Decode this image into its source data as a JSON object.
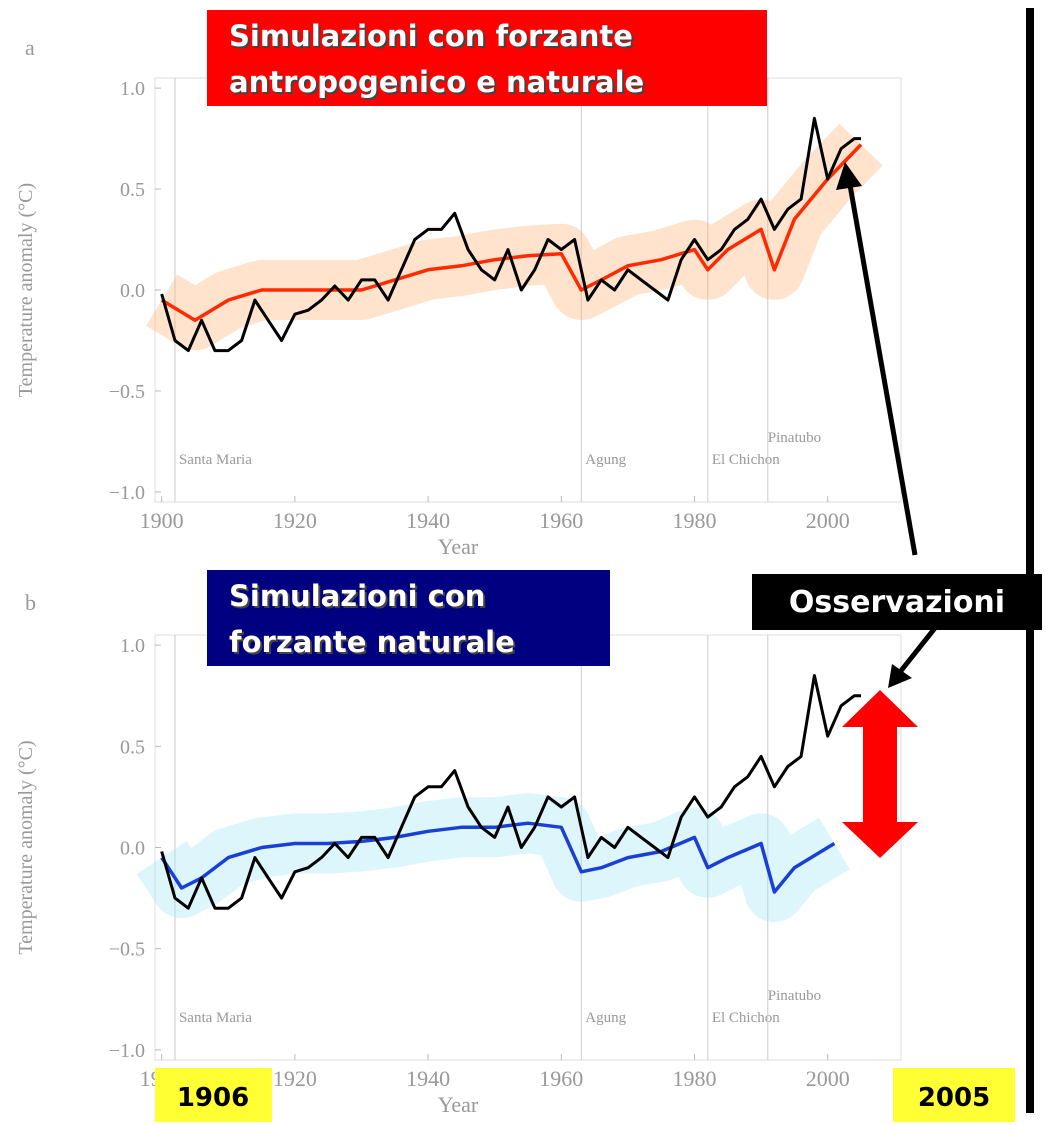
{
  "chart_data": [
    {
      "type": "line",
      "panel": "a",
      "title": [
        "Simulazioni con forzante",
        "antropogenico e naturale"
      ],
      "xlabel": "Year",
      "ylabel": "Temperature anomaly (°C)",
      "xlim": [
        1899,
        2011
      ],
      "ylim": [
        -1.05,
        1.05
      ],
      "xticks": [
        1900,
        1920,
        1940,
        1960,
        1980,
        2000
      ],
      "yticks": [
        {
          "value": 1.0,
          "label": "1.0"
        },
        {
          "value": 0.5,
          "label": "0.5"
        },
        {
          "value": 0,
          "label": "0.0"
        },
        {
          "value": -0.5,
          "label": "−0.5"
        },
        {
          "value": -1.0,
          "label": "−1.0"
        }
      ],
      "annotations": [
        {
          "label": "Santa Maria",
          "x": 1902
        },
        {
          "label": "Agung",
          "x": 1963
        },
        {
          "label": "El Chichon",
          "x": 1982
        },
        {
          "label": "Pinatubo",
          "x": 1991
        }
      ],
      "series": [
        {
          "color": "#ff2a00",
          "x": [
            1900,
            1905,
            1910,
            1915,
            1920,
            1925,
            1930,
            1935,
            1940,
            1945,
            1950,
            1955,
            1960,
            1963,
            1966,
            1970,
            1975,
            1980,
            1982,
            1985,
            1990,
            1992,
            1995,
            2000,
            2005
          ],
          "values": [
            -0.05,
            -0.15,
            -0.05,
            0.0,
            0.0,
            0.0,
            0.0,
            0.05,
            0.1,
            0.12,
            0.15,
            0.17,
            0.18,
            0.0,
            0.05,
            0.12,
            0.15,
            0.2,
            0.1,
            0.2,
            0.3,
            0.1,
            0.35,
            0.55,
            0.72
          ]
        },
        {
          "color": "#000000",
          "x": [
            1900,
            1902,
            1904,
            1906,
            1908,
            1910,
            1912,
            1914,
            1916,
            1918,
            1920,
            1922,
            1924,
            1926,
            1928,
            1930,
            1932,
            1934,
            1936,
            1938,
            1940,
            1942,
            1944,
            1946,
            1948,
            1950,
            1952,
            1954,
            1956,
            1958,
            1960,
            1962,
            1964,
            1966,
            1968,
            1970,
            1972,
            1974,
            1976,
            1978,
            1980,
            1982,
            1984,
            1986,
            1988,
            1990,
            1992,
            1994,
            1996,
            1998,
            2000,
            2002,
            2004,
            2005
          ],
          "values": [
            -0.02,
            -0.25,
            -0.3,
            -0.15,
            -0.3,
            -0.3,
            -0.25,
            -0.05,
            -0.15,
            -0.25,
            -0.12,
            -0.1,
            -0.05,
            0.02,
            -0.05,
            0.05,
            0.05,
            -0.05,
            0.1,
            0.25,
            0.3,
            0.3,
            0.38,
            0.2,
            0.1,
            0.05,
            0.2,
            0.0,
            0.1,
            0.25,
            0.2,
            0.25,
            -0.05,
            0.05,
            0.0,
            0.1,
            0.05,
            0.0,
            -0.05,
            0.15,
            0.25,
            0.15,
            0.2,
            0.3,
            0.35,
            0.45,
            0.3,
            0.4,
            0.45,
            0.85,
            0.55,
            0.7,
            0.75,
            0.75
          ]
        }
      ]
    },
    {
      "type": "line",
      "panel": "b",
      "title": [
        "Simulazioni con",
        "forzante naturale"
      ],
      "xlabel": "Year",
      "ylabel": "Temperature anomaly (°C)",
      "xlim": [
        1899,
        2011
      ],
      "ylim": [
        -1.05,
        1.05
      ],
      "xticks": [
        1900,
        1920,
        1940,
        1960,
        1980,
        2000
      ],
      "yticks": [
        {
          "value": 1.0,
          "label": "1.0"
        },
        {
          "value": 0.5,
          "label": "0.5"
        },
        {
          "value": 0,
          "label": "0.0"
        },
        {
          "value": -0.5,
          "label": "−0.5"
        },
        {
          "value": -1.0,
          "label": "−1.0"
        }
      ],
      "annotations": [
        {
          "label": "Santa Maria",
          "x": 1902
        },
        {
          "label": "Agung",
          "x": 1963
        },
        {
          "label": "El Chichon",
          "x": 1982
        },
        {
          "label": "Pinatubo",
          "x": 1991
        }
      ],
      "series": [
        {
          "color": "#1a3fd6",
          "x": [
            1900,
            1903,
            1906,
            1910,
            1915,
            1920,
            1925,
            1930,
            1935,
            1940,
            1945,
            1950,
            1955,
            1960,
            1963,
            1966,
            1970,
            1975,
            1980,
            1982,
            1985,
            1990,
            1992,
            1995,
            2000,
            2001
          ],
          "values": [
            -0.05,
            -0.2,
            -0.15,
            -0.05,
            0.0,
            0.02,
            0.02,
            0.03,
            0.05,
            0.08,
            0.1,
            0.1,
            0.12,
            0.1,
            -0.12,
            -0.1,
            -0.05,
            -0.02,
            0.05,
            -0.1,
            -0.05,
            0.02,
            -0.22,
            -0.1,
            0.0,
            0.02
          ]
        },
        {
          "color": "#000000",
          "x": [
            1900,
            1902,
            1904,
            1906,
            1908,
            1910,
            1912,
            1914,
            1916,
            1918,
            1920,
            1922,
            1924,
            1926,
            1928,
            1930,
            1932,
            1934,
            1936,
            1938,
            1940,
            1942,
            1944,
            1946,
            1948,
            1950,
            1952,
            1954,
            1956,
            1958,
            1960,
            1962,
            1964,
            1966,
            1968,
            1970,
            1972,
            1974,
            1976,
            1978,
            1980,
            1982,
            1984,
            1986,
            1988,
            1990,
            1992,
            1994,
            1996,
            1998,
            2000,
            2002,
            2004,
            2005
          ],
          "values": [
            -0.02,
            -0.25,
            -0.3,
            -0.15,
            -0.3,
            -0.3,
            -0.25,
            -0.05,
            -0.15,
            -0.25,
            -0.12,
            -0.1,
            -0.05,
            0.02,
            -0.05,
            0.05,
            0.05,
            -0.05,
            0.1,
            0.25,
            0.3,
            0.3,
            0.38,
            0.2,
            0.1,
            0.05,
            0.2,
            0.0,
            0.1,
            0.25,
            0.2,
            0.25,
            -0.05,
            0.05,
            0.0,
            0.1,
            0.05,
            0.0,
            -0.05,
            0.15,
            0.25,
            0.15,
            0.2,
            0.3,
            0.35,
            0.45,
            0.3,
            0.4,
            0.45,
            0.85,
            0.55,
            0.7,
            0.75,
            0.75
          ]
        }
      ]
    }
  ],
  "callouts": {
    "observations": "Osservazioni",
    "start": "1906",
    "end": "2005"
  }
}
